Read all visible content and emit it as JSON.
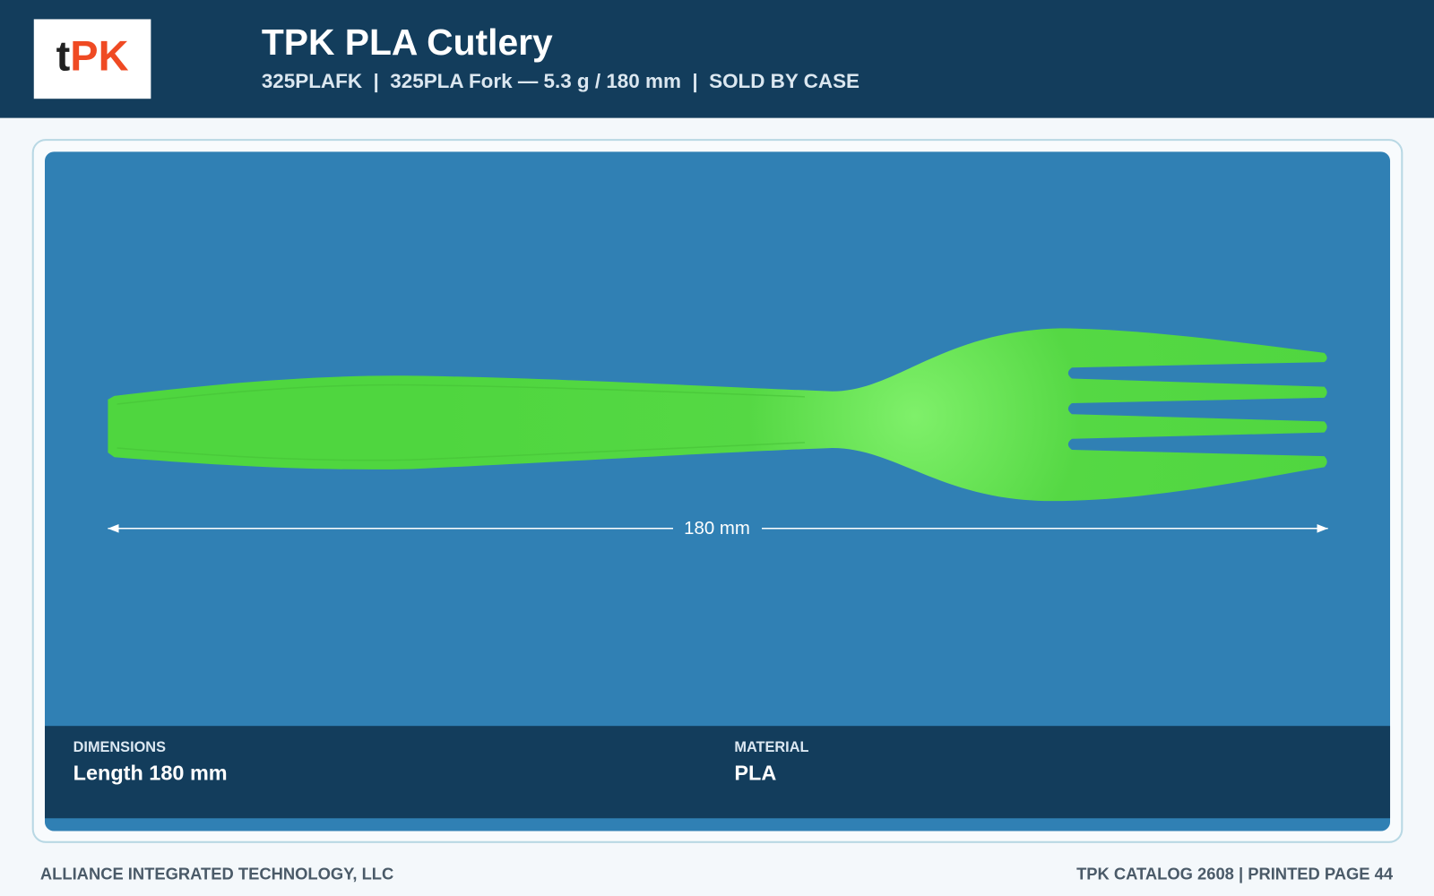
{
  "header": {
    "logo": {
      "prefix": "t",
      "main": "PK"
    },
    "title": "TPK PLA Cutlery",
    "subtitle": "325PLAFK  |  325PLA Fork — 5.3 g / 180 mm  |  SOLD BY CASE"
  },
  "product": {
    "dimension_label": "180 mm"
  },
  "specs": [
    {
      "label": "DIMENSIONS",
      "value": "Length 180 mm"
    },
    {
      "label": "MATERIAL",
      "value": "PLA"
    }
  ],
  "footer": {
    "left": "ALLIANCE INTEGRATED TECHNOLOGY, LLC",
    "right": "TPK CATALOG 2608 | PRINTED PAGE 44"
  }
}
